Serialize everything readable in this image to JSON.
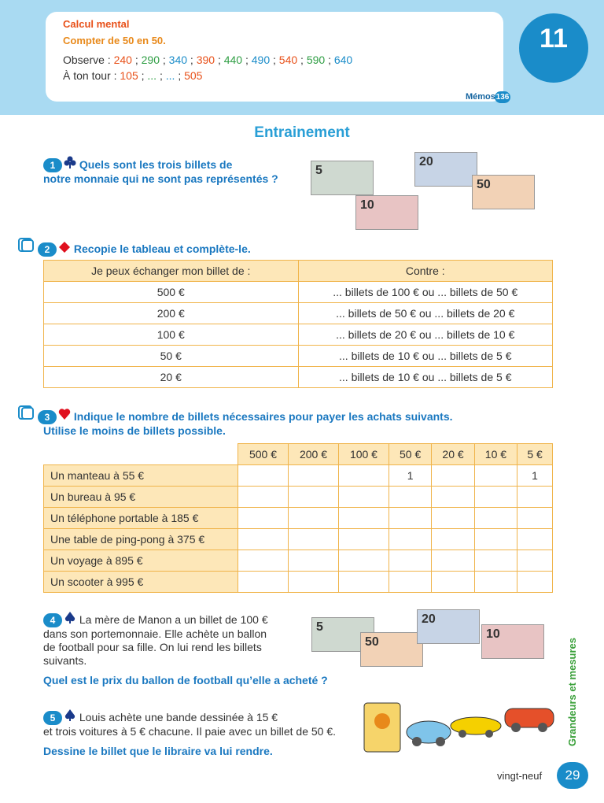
{
  "header": {
    "title": "Calcul mental",
    "subtitle": "Compter de 50 en 50.",
    "observe": {
      "label": "Observe :",
      "values": [
        "240",
        "290",
        "340",
        "390",
        "440",
        "490",
        "540",
        "590",
        "640"
      ],
      "separator": ";"
    },
    "turn": {
      "label": "À ton tour :",
      "values": [
        "105",
        "...",
        "...",
        "505"
      ],
      "separator": ";"
    },
    "memos": "Mémos",
    "memos_page": "136",
    "badge": "11"
  },
  "section_title": "Entrainement",
  "exercises": [
    {
      "number": "1",
      "lines": [
        "Quels sont les trois billets de",
        "notre monnaie qui ne sont pas représentés ?"
      ],
      "bills": [
        "5",
        "20",
        "10",
        "50"
      ]
    },
    {
      "number": "2",
      "lines": [
        "Recopie le tableau et complète-le."
      ],
      "table": {
        "header": [
          "Je peux échanger mon billet de :",
          "Contre :"
        ],
        "rows": [
          [
            "500 €",
            "... billets de 100 € ou ... billets de 50 €"
          ],
          [
            "200 €",
            "... billets de 50 € ou ... billets de 20 €"
          ],
          [
            "100 €",
            "... billets de 20 € ou ... billets de 10 €"
          ],
          [
            "50 €",
            "... billets de 10 € ou ... billets de 5 €"
          ],
          [
            "20 €",
            "... billets de 10 € ou ... billets de 5 €"
          ]
        ]
      }
    },
    {
      "number": "3",
      "lines": [
        "Indique le nombre de billets nécessaires pour payer les achats suivants.",
        "Utilise le moins de billets possible."
      ],
      "table": {
        "header": [
          "500 €",
          "200 €",
          "100 €",
          "50 €",
          "20 €",
          "10 €",
          "5 €"
        ],
        "rows": [
          {
            "label": "Un manteau à 55 €",
            "cells": [
              null,
              null,
              null,
              "1",
              null,
              null,
              "1"
            ]
          },
          {
            "label": "Un bureau à 95 €",
            "cells": [
              null,
              null,
              null,
              null,
              null,
              null,
              null
            ]
          },
          {
            "label": "Un téléphone portable à 185 €",
            "cells": [
              null,
              null,
              null,
              null,
              null,
              null,
              null
            ]
          },
          {
            "label": "Une table de ping-pong à 375 €",
            "cells": [
              null,
              null,
              null,
              null,
              null,
              null,
              null
            ]
          },
          {
            "label": "Un voyage à 895 €",
            "cells": [
              null,
              null,
              null,
              null,
              null,
              null,
              null
            ]
          },
          {
            "label": "Un scooter à 995 €",
            "cells": [
              null,
              null,
              null,
              null,
              null,
              null,
              null
            ]
          }
        ]
      }
    },
    {
      "number": "4",
      "lines": [
        "La mère de Manon a un billet de 100 €",
        "dans son portemonnaie. Elle achète un ballon",
        "de football pour sa fille. On lui rend les billets",
        "suivants."
      ],
      "question": "Quel est le prix du ballon de football qu’elle a acheté ?",
      "bills": [
        "5",
        "50",
        "20",
        "10"
      ]
    },
    {
      "number": "5",
      "lines": [
        "Louis achète une bande dessinée à 15 €",
        "et trois voitures à 5 € chacune. Il paie avec un billet de 50 €."
      ],
      "question": "Dessine le billet que le libraire va lui rendre."
    }
  ],
  "side_label": "Grandeurs et mesures",
  "footer": {
    "page_word": "vingt-neuf",
    "page_number": "29"
  }
}
